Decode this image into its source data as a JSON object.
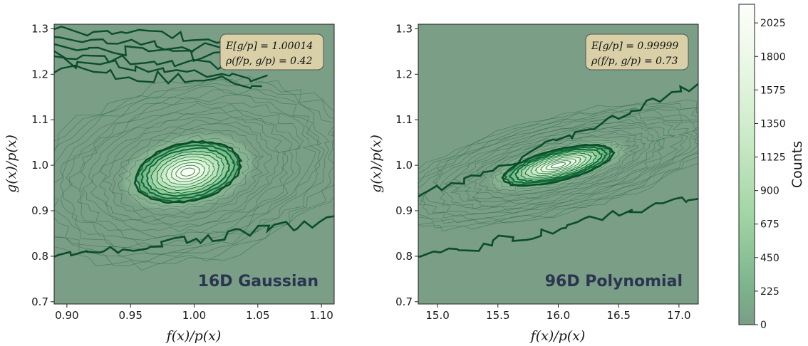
{
  "chart_data": [
    {
      "type": "heatmap",
      "subtype": "2d-histogram-contour",
      "annotation": "16D Gaussian",
      "stats": [
        "E[g/p] = 1.00014",
        "ρ(f/p, g/p) = 0.42"
      ],
      "xlabel": "f(x)/p(x)",
      "ylabel": "g(x)/p(x)",
      "xlim": [
        0.89,
        1.11
      ],
      "ylim": [
        0.695,
        1.31
      ],
      "xticks": [
        "0.90",
        "0.95",
        "1.00",
        "1.05",
        "1.10"
      ],
      "xtick_values": [
        0.9,
        0.95,
        1.0,
        1.05,
        1.1
      ],
      "yticks": [
        "0.7",
        "0.8",
        "0.9",
        "1.0",
        "1.1",
        "1.2",
        "1.3"
      ],
      "ytick_values": [
        0.7,
        0.8,
        0.9,
        1.0,
        1.1,
        1.2,
        1.3
      ],
      "distribution": {
        "center_x": 0.995,
        "center_y": 0.985,
        "sigma_x": 0.03,
        "sigma_y": 0.045,
        "correlation": 0.42
      },
      "outer_boundary": {
        "lower_at_xmin": 0.795,
        "lower_at_xmax": 0.88,
        "upper_band": "top-left"
      }
    },
    {
      "type": "heatmap",
      "subtype": "2d-histogram-contour",
      "annotation": "96D Polynomial",
      "stats": [
        "E[g/p] = 0.99999",
        "ρ(f/p, g/p) = 0.73"
      ],
      "xlabel": "f(x)/p(x)",
      "ylabel": "g(x)/p(x)",
      "xlim": [
        14.84,
        17.16
      ],
      "ylim": [
        0.695,
        1.31
      ],
      "xticks": [
        "15.0",
        "15.5",
        "16.0",
        "16.5",
        "17.0"
      ],
      "xtick_values": [
        15.0,
        15.5,
        16.0,
        16.5,
        17.0
      ],
      "yticks": [
        "0.7",
        "0.8",
        "0.9",
        "1.0",
        "1.1",
        "1.2",
        "1.3"
      ],
      "ytick_values": [
        0.7,
        0.8,
        0.9,
        1.0,
        1.1,
        1.2,
        1.3
      ],
      "distribution": {
        "center_x": 16.0,
        "center_y": 1.0,
        "sigma_x": 0.33,
        "sigma_y": 0.032,
        "correlation": 0.73
      },
      "outer_boundary": {
        "lower_at_xmin": 0.795,
        "lower_at_xmax": 0.93,
        "upper_at_xmin": 0.93,
        "upper_at_xmax": 1.175
      }
    }
  ],
  "colorbar": {
    "label": "Counts",
    "range": [
      0,
      2150
    ],
    "ticks": [
      "0",
      "225",
      "450",
      "675",
      "900",
      "1125",
      "1350",
      "1575",
      "1800",
      "2025"
    ],
    "tick_values": [
      0,
      225,
      450,
      675,
      900,
      1125,
      1350,
      1575,
      1800,
      2025
    ],
    "colormap_stops": [
      "#7a9e86",
      "#7db48c",
      "#a3d6a6",
      "#cdecc8",
      "#eef9ea",
      "#fcfefa"
    ]
  },
  "colors": {
    "background": "#7a9e86",
    "outer_contour": "#0b4d2a",
    "inner_contour": "#0f6a35",
    "stats_box_fill": "#d9d0a8",
    "annotation_text": "#2b3450"
  }
}
